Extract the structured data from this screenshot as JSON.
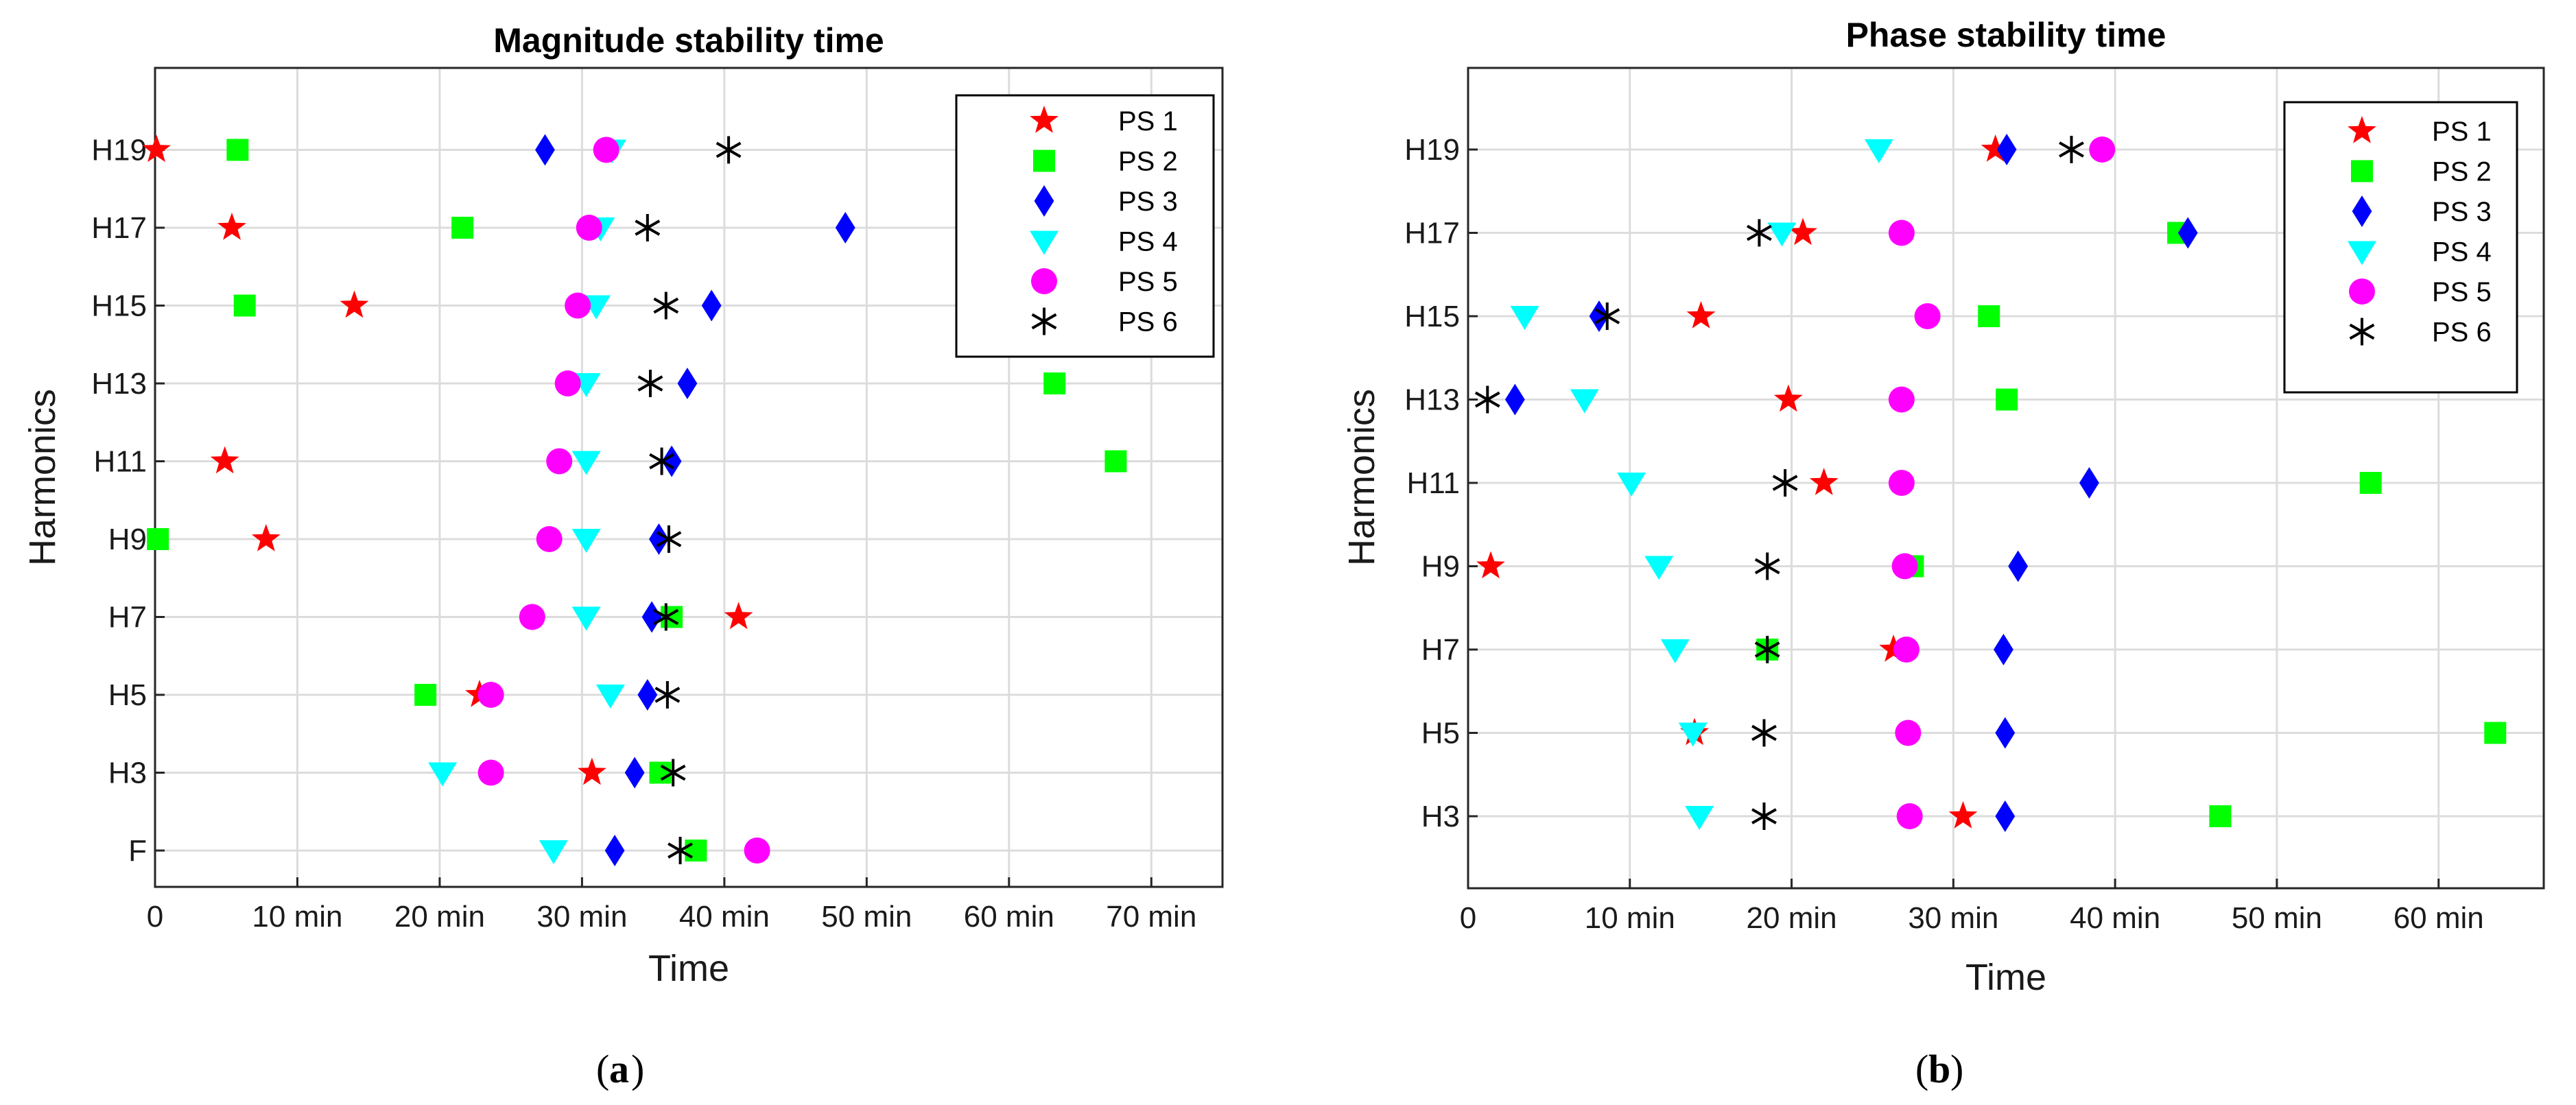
{
  "chart_data": [
    {
      "type": "scatter",
      "panel_label": "a",
      "title": "Magnitude stability time",
      "xlabel": "Time",
      "ylabel": "Harmonics",
      "xlim": [
        0,
        75
      ],
      "xtick_values": [
        0,
        10,
        20,
        30,
        40,
        50,
        60,
        70
      ],
      "xtick_labels": [
        "0",
        "10 min",
        "20 min",
        "30 min",
        "40 min",
        "50 min",
        "60 min",
        "70 min"
      ],
      "categories": [
        "F",
        "H3",
        "H5",
        "H7",
        "H9",
        "H11",
        "H13",
        "H15",
        "H17",
        "H19"
      ],
      "grid": true,
      "legend_position": "top-right",
      "series": [
        {
          "name": "PS 1",
          "marker": "star",
          "color": "#ff0000",
          "points": [
            [
              30.7,
              "H3"
            ],
            [
              22.8,
              "H5"
            ],
            [
              41.0,
              "H7"
            ],
            [
              7.8,
              "H9"
            ],
            [
              4.9,
              "H11"
            ],
            [
              14.0,
              "H15"
            ],
            [
              5.4,
              "H17"
            ],
            [
              0.1,
              "H19"
            ]
          ]
        },
        {
          "name": "PS 2",
          "marker": "square",
          "color": "#00ff00",
          "points": [
            [
              38.0,
              "F"
            ],
            [
              35.5,
              "H3"
            ],
            [
              19.0,
              "H5"
            ],
            [
              36.3,
              "H7"
            ],
            [
              0.2,
              "H9"
            ],
            [
              67.5,
              "H11"
            ],
            [
              63.2,
              "H13"
            ],
            [
              6.3,
              "H15"
            ],
            [
              21.6,
              "H17"
            ],
            [
              5.8,
              "H19"
            ]
          ]
        },
        {
          "name": "PS 3",
          "marker": "diamond",
          "color": "#0000ff",
          "points": [
            [
              32.3,
              "F"
            ],
            [
              33.7,
              "H3"
            ],
            [
              34.6,
              "H5"
            ],
            [
              34.9,
              "H7"
            ],
            [
              35.4,
              "H9"
            ],
            [
              36.3,
              "H11"
            ],
            [
              37.4,
              "H13"
            ],
            [
              39.1,
              "H15"
            ],
            [
              48.5,
              "H17"
            ],
            [
              27.4,
              "H19"
            ]
          ]
        },
        {
          "name": "PS 4",
          "marker": "triangle-down",
          "color": "#00ffff",
          "points": [
            [
              28.0,
              "F"
            ],
            [
              20.2,
              "H3"
            ],
            [
              32.0,
              "H5"
            ],
            [
              30.3,
              "H7"
            ],
            [
              30.3,
              "H9"
            ],
            [
              30.3,
              "H11"
            ],
            [
              30.3,
              "H13"
            ],
            [
              31.0,
              "H15"
            ],
            [
              31.3,
              "H17"
            ],
            [
              32.1,
              "H19"
            ]
          ]
        },
        {
          "name": "PS 5",
          "marker": "circle",
          "color": "#ff00ff",
          "points": [
            [
              42.3,
              "F"
            ],
            [
              23.6,
              "H3"
            ],
            [
              23.6,
              "H5"
            ],
            [
              26.5,
              "H7"
            ],
            [
              27.7,
              "H9"
            ],
            [
              28.4,
              "H11"
            ],
            [
              29.0,
              "H13"
            ],
            [
              29.7,
              "H15"
            ],
            [
              30.5,
              "H17"
            ],
            [
              31.7,
              "H19"
            ]
          ]
        },
        {
          "name": "PS 6",
          "marker": "asterisk",
          "color": "#000000",
          "points": [
            [
              36.9,
              "F"
            ],
            [
              36.4,
              "H3"
            ],
            [
              36.0,
              "H5"
            ],
            [
              35.9,
              "H7"
            ],
            [
              36.1,
              "H9"
            ],
            [
              35.6,
              "H11"
            ],
            [
              34.8,
              "H13"
            ],
            [
              35.9,
              "H15"
            ],
            [
              34.6,
              "H17"
            ],
            [
              40.3,
              "H19"
            ]
          ]
        }
      ]
    },
    {
      "type": "scatter",
      "panel_label": "b",
      "title": "Phase stability time",
      "xlabel": "Time",
      "ylabel": "Harmonics",
      "xlim": [
        0,
        66.5
      ],
      "xtick_values": [
        0,
        10,
        20,
        30,
        40,
        50,
        60
      ],
      "xtick_labels": [
        "0",
        "10 min",
        "20 min",
        "30 min",
        "40 min",
        "50 min",
        "60 min"
      ],
      "categories": [
        "H3",
        "H5",
        "H7",
        "H9",
        "H11",
        "H13",
        "H15",
        "H17",
        "H19"
      ],
      "grid": true,
      "legend_position": "top-right",
      "series": [
        {
          "name": "PS 1",
          "marker": "star",
          "color": "#ff0000",
          "points": [
            [
              30.6,
              "H3"
            ],
            [
              14.0,
              "H5"
            ],
            [
              26.3,
              "H7"
            ],
            [
              1.4,
              "H9"
            ],
            [
              22.0,
              "H11"
            ],
            [
              19.8,
              "H13"
            ],
            [
              14.4,
              "H15"
            ],
            [
              20.7,
              "H17"
            ],
            [
              32.6,
              "H19"
            ]
          ]
        },
        {
          "name": "PS 2",
          "marker": "square",
          "color": "#00ff00",
          "points": [
            [
              46.5,
              "H3"
            ],
            [
              63.5,
              "H5"
            ],
            [
              18.5,
              "H7"
            ],
            [
              27.5,
              "H9"
            ],
            [
              55.8,
              "H11"
            ],
            [
              33.3,
              "H13"
            ],
            [
              32.2,
              "H15"
            ],
            [
              43.9,
              "H17"
            ]
          ]
        },
        {
          "name": "PS 3",
          "marker": "diamond",
          "color": "#0000ff",
          "points": [
            [
              33.2,
              "H3"
            ],
            [
              33.2,
              "H5"
            ],
            [
              33.1,
              "H7"
            ],
            [
              34.0,
              "H9"
            ],
            [
              38.4,
              "H11"
            ],
            [
              2.9,
              "H13"
            ],
            [
              8.1,
              "H15"
            ],
            [
              44.5,
              "H17"
            ],
            [
              33.3,
              "H19"
            ]
          ]
        },
        {
          "name": "PS 4",
          "marker": "triangle-down",
          "color": "#00ffff",
          "points": [
            [
              14.3,
              "H3"
            ],
            [
              13.9,
              "H5"
            ],
            [
              12.8,
              "H7"
            ],
            [
              11.8,
              "H9"
            ],
            [
              10.1,
              "H11"
            ],
            [
              7.2,
              "H13"
            ],
            [
              3.5,
              "H15"
            ],
            [
              19.4,
              "H17"
            ],
            [
              25.4,
              "H19"
            ]
          ]
        },
        {
          "name": "PS 5",
          "marker": "circle",
          "color": "#ff00ff",
          "points": [
            [
              27.3,
              "H3"
            ],
            [
              27.2,
              "H5"
            ],
            [
              27.1,
              "H7"
            ],
            [
              27.0,
              "H9"
            ],
            [
              26.8,
              "H11"
            ],
            [
              26.8,
              "H13"
            ],
            [
              28.4,
              "H15"
            ],
            [
              26.8,
              "H17"
            ],
            [
              39.2,
              "H19"
            ]
          ]
        },
        {
          "name": "PS 6",
          "marker": "asterisk",
          "color": "#000000",
          "points": [
            [
              18.3,
              "H3"
            ],
            [
              18.3,
              "H5"
            ],
            [
              18.5,
              "H7"
            ],
            [
              18.5,
              "H9"
            ],
            [
              19.6,
              "H11"
            ],
            [
              1.2,
              "H13"
            ],
            [
              8.6,
              "H15"
            ],
            [
              18.0,
              "H17"
            ],
            [
              37.3,
              "H19"
            ]
          ]
        }
      ]
    }
  ]
}
